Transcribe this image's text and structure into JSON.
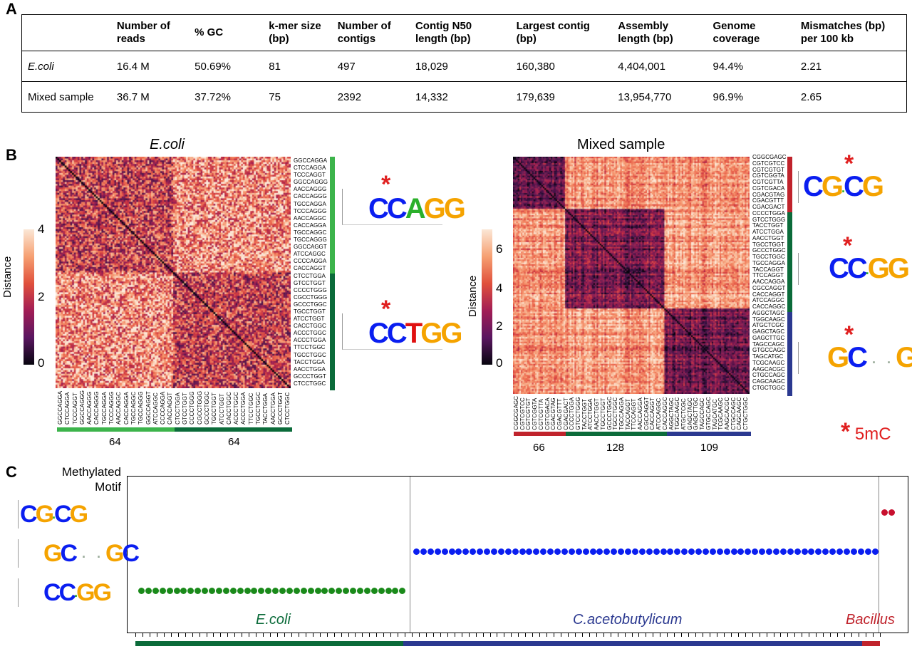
{
  "panels": {
    "a": "A",
    "b": "B",
    "c": "C"
  },
  "table": {
    "headers": [
      "",
      "Number of reads",
      "% GC",
      "k-mer size (bp)",
      "Number of contigs",
      "Contig N50 length (bp)",
      "Largest contig (bp)",
      "Assembly length (bp)",
      "Genome coverage",
      "Mismatches (bp) per 100 kb"
    ],
    "rows": [
      [
        "E.coli",
        "16.4 M",
        "50.69%",
        "81",
        "497",
        "18,029",
        "160,380",
        "4,404,001",
        "94.4%",
        "2.21"
      ],
      [
        "Mixed sample",
        "36.7 M",
        "37.72%",
        "75",
        "2392",
        "14,332",
        "179,639",
        "13,954,770",
        "96.9%",
        "2.65"
      ]
    ]
  },
  "ecoli": {
    "title": "E.coli",
    "colorbar_label": "Distance",
    "ticks": [
      "4",
      "2",
      "0"
    ],
    "row_labels": [
      "GGCCAGGA",
      "CTCCAGGA",
      "TCCCAGGT",
      "GGCCAGGG",
      "AACCAGGG",
      "CACCAGGG",
      "TGCCAGGA",
      "TCCCAGGG",
      "AACCAGGC",
      "CACCAGGA",
      "TGCCAGGC",
      "TGCCAGGG",
      "GGCCAGGT",
      "ATCCAGGC",
      "CCCCAGGA",
      "CACCAGGT",
      "CTCCTGGA",
      "GTCCTGGT",
      "CCCCTGGG",
      "CGCCTGGG",
      "GCCCTGGC",
      "TGCCTGGT",
      "ATCCTGGT",
      "CACCTGGC",
      "ACCCTGGC",
      "ACCCTGGA",
      "TTCCTGGC",
      "TGCCTGGC",
      "TACCTGGA",
      "AACCTGGA",
      "GCCCTGGT",
      "CTCCTGGC"
    ],
    "col_labels": [
      "GGCCAGGA",
      "CTCCAGGA",
      "TCCCAGGT",
      "GGCCAGGG",
      "AACCAGGG",
      "CACCAGGG",
      "TGCCAGGA",
      "TCCCAGGG",
      "AACCAGGC",
      "CACCAGGA",
      "TGCCAGGC",
      "TGCCAGGG",
      "GGCCAGGT",
      "ATCCAGGC",
      "CCCCAGGA",
      "CACCAGGT",
      "CTCCTGGA",
      "GTCCTGGT",
      "CCCCTGGG",
      "CGCCTGGG",
      "GCCCTGGC",
      "TGCCTGGT",
      "ATCCTGGT",
      "CACCTGGC",
      "ACCCTGGC",
      "ACCCTGGA",
      "TTCCTGGC",
      "TGCCTGGC",
      "TACCTGGA",
      "AACCTGGA",
      "GCCCTGGT",
      "CTCCTGGC"
    ],
    "groups": [
      {
        "count": "64",
        "color": "#3cb44b"
      },
      {
        "count": "64",
        "color": "#0b6b3a"
      }
    ],
    "motifs": [
      "CCAGG",
      "CCTGG"
    ]
  },
  "mixed": {
    "title": "Mixed sample",
    "colorbar_label": "Distance",
    "ticks": [
      "6",
      "4",
      "2",
      "0"
    ],
    "row_labels": [
      "CGGCGAGC",
      "CGTCGTCC",
      "CGTCGTGT",
      "CGTCGGTA",
      "CGTCGTTA",
      "CGTCGACA",
      "CGACGTAG",
      "CGACGTTT",
      "CGACGACT",
      "CCCCTGGA",
      "GTCCTGGG",
      "TACCTGGT",
      "ATCCTGGA",
      "AACCTGGT",
      "TGCCTGGT",
      "GCCCTGGC",
      "TGCCTGGC",
      "TGCCAGGA",
      "TACCAGGT",
      "TTCCAGGT",
      "AACCAGGA",
      "CGCCAGGT",
      "CACCAGGT",
      "ATCCAGGC",
      "CACCAGGC",
      "AGGCTAGC",
      "TGGCAAGC",
      "ATGCTCGC",
      "GAGCTAGC",
      "GAGCTTGC",
      "TAGCCAGC",
      "GTGCCAGC",
      "TAGCATGC",
      "TCGCAAGC",
      "AAGCACGC",
      "CTGCCAGC",
      "CAGCAAGC",
      "CTGCTGGC"
    ],
    "groups": [
      {
        "count": "66",
        "color": "#c0232c"
      },
      {
        "count": "128",
        "color": "#0b6b3a"
      },
      {
        "count": "109",
        "color": "#2b3990"
      }
    ],
    "motifs": [
      "CG·CG",
      "CC·GG",
      "GC··GC"
    ]
  },
  "legend": {
    "star": "*",
    "label": "5mC"
  },
  "panel_c": {
    "y_title": "Methylated Motif",
    "motifs": [
      "CG·CG",
      "GC··GC",
      "CC·GG"
    ],
    "organisms": [
      {
        "name": "E.coli",
        "color": "#0b6b3a",
        "dots": 38
      },
      {
        "name": "C.acetobutylicum",
        "color": "#2b3990",
        "dots": 66
      },
      {
        "name": "Bacillus",
        "color": "#c0232c",
        "dots": 2
      }
    ],
    "dot_colors": {
      "E.coli": "#1a8a1a",
      "C.acetobutylicum": "#0a1ef0",
      "Bacillus": "#c8102e"
    }
  }
}
